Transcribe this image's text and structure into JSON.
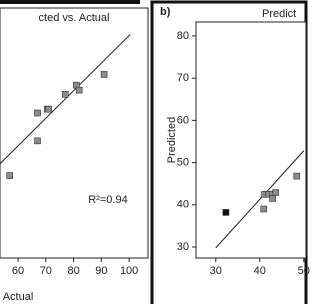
{
  "chart_data": [
    {
      "type": "scatter",
      "title": "cted vs. Actual",
      "xlabel": "Actual",
      "annotation": "R²=0.94",
      "xlim": [
        53.5,
        106.8
      ],
      "ylim": [
        19.3,
        110
      ],
      "xticks": [
        60,
        70,
        80,
        90,
        100
      ],
      "series": [
        {
          "color": "#8c8c8c",
          "x": [
            57,
            67,
            67,
            70.5,
            71,
            77,
            81,
            82,
            91
          ],
          "y": [
            49.2,
            61.8,
            71.9,
            73.3,
            73.3,
            78.7,
            82,
            80.2,
            85.9
          ]
        }
      ],
      "fit": {
        "x": [
          53.5,
          100.4
        ],
        "y": [
          53.5,
          100.4
        ]
      }
    },
    {
      "type": "scatter",
      "title": "Predict",
      "panel_label": "b)",
      "ylabel": "Predicted",
      "xlim": [
        25.5,
        50.5
      ],
      "ylim": [
        27.4,
        83.3
      ],
      "xticks": [
        30,
        40,
        50
      ],
      "yticks": [
        30,
        40,
        50,
        60,
        70,
        80
      ],
      "series": [
        {
          "color": "#111111",
          "x": [
            32.3
          ],
          "y": [
            38.2
          ]
        },
        {
          "color": "#8c8c8c",
          "x": [
            41.1,
            42,
            42.9,
            43.6,
            40.9,
            42.9,
            48.4
          ],
          "y": [
            42.5,
            42.5,
            42.5,
            42.9,
            39,
            41.5,
            46.8
          ]
        }
      ],
      "fit": {
        "x": [
          30,
          50
        ],
        "y": [
          29.8,
          52.8
        ]
      }
    }
  ]
}
